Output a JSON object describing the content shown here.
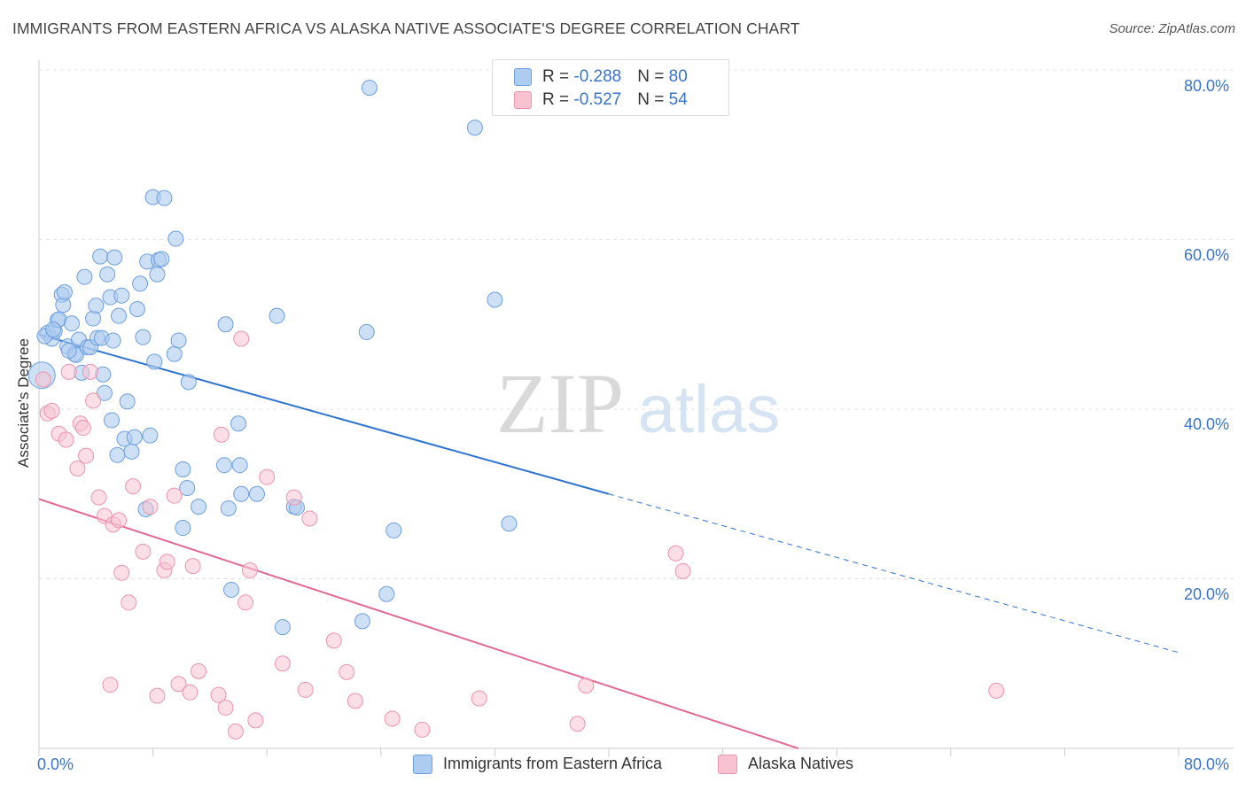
{
  "header": {
    "title": "IMMIGRANTS FROM EASTERN AFRICA VS ALASKA NATIVE ASSOCIATE'S DEGREE CORRELATION CHART",
    "source": "Source: ZipAtlas.com"
  },
  "watermark": {
    "zip": "ZIP",
    "atlas": "atlas"
  },
  "legend": {
    "rows": [
      {
        "r_label": "R = ",
        "r_value": "-0.288",
        "n_label": "N = ",
        "n_value": "80"
      },
      {
        "r_label": "R = ",
        "r_value": "-0.527",
        "n_label": "N = ",
        "n_value": "54"
      }
    ]
  },
  "chart_data": {
    "type": "scatter",
    "ylabel": "Associate's Degree",
    "x_tick_labels": [
      "0.0%",
      "80.0%"
    ],
    "y_tick_labels": [
      "20.0%",
      "40.0%",
      "60.0%",
      "80.0%"
    ],
    "xlim": [
      0,
      80
    ],
    "ylim": [
      0,
      80
    ],
    "grid": true,
    "colors": {
      "blue_fill": "#aecbf0",
      "blue_stroke": "#6d9fde",
      "blue_line": "#2f73d0",
      "pink_fill": "#f8c2d1",
      "pink_stroke": "#ec94b0",
      "pink_line": "#e26a95"
    },
    "series": [
      {
        "name": "Immigrants from Eastern Africa",
        "trend": {
          "x0": 0,
          "y0": 48.8,
          "x1": 40,
          "y1": 30.0,
          "dash_to_x": 80,
          "dash_to_y": 11.3
        },
        "points": [
          [
            0.2,
            44.0
          ],
          [
            0.6,
            49.0
          ],
          [
            0.9,
            48.3
          ],
          [
            1.1,
            49.2
          ],
          [
            1.3,
            50.5
          ],
          [
            1.4,
            50.6
          ],
          [
            1.6,
            53.5
          ],
          [
            1.7,
            52.3
          ],
          [
            1.8,
            53.8
          ],
          [
            2.0,
            47.4
          ],
          [
            2.3,
            50.1
          ],
          [
            2.5,
            46.5
          ],
          [
            2.6,
            46.4
          ],
          [
            2.8,
            48.2
          ],
          [
            3.0,
            44.3
          ],
          [
            3.2,
            55.6
          ],
          [
            3.4,
            47.3
          ],
          [
            3.6,
            47.3
          ],
          [
            3.8,
            50.7
          ],
          [
            4.0,
            52.2
          ],
          [
            4.1,
            48.4
          ],
          [
            4.3,
            58.0
          ],
          [
            4.5,
            44.1
          ],
          [
            4.6,
            41.9
          ],
          [
            4.8,
            55.9
          ],
          [
            5.0,
            53.2
          ],
          [
            5.1,
            38.7
          ],
          [
            5.3,
            57.9
          ],
          [
            5.5,
            34.6
          ],
          [
            5.6,
            51.0
          ],
          [
            5.8,
            53.4
          ],
          [
            6.0,
            36.5
          ],
          [
            6.2,
            40.9
          ],
          [
            6.5,
            35.0
          ],
          [
            6.7,
            36.7
          ],
          [
            6.9,
            51.8
          ],
          [
            7.1,
            54.8
          ],
          [
            7.3,
            48.5
          ],
          [
            7.5,
            28.2
          ],
          [
            7.6,
            57.4
          ],
          [
            7.8,
            36.9
          ],
          [
            8.0,
            65.0
          ],
          [
            8.1,
            45.6
          ],
          [
            8.3,
            55.9
          ],
          [
            8.4,
            57.6
          ],
          [
            8.6,
            57.7
          ],
          [
            8.8,
            64.9
          ],
          [
            9.5,
            46.5
          ],
          [
            9.6,
            60.1
          ],
          [
            9.8,
            48.1
          ],
          [
            10.1,
            26.0
          ],
          [
            10.1,
            32.9
          ],
          [
            10.4,
            30.7
          ],
          [
            10.5,
            43.2
          ],
          [
            11.2,
            28.5
          ],
          [
            13.1,
            50.0
          ],
          [
            13.0,
            33.4
          ],
          [
            13.3,
            28.3
          ],
          [
            13.5,
            18.7
          ],
          [
            14.0,
            38.3
          ],
          [
            14.1,
            33.4
          ],
          [
            14.2,
            30.0
          ],
          [
            15.3,
            30.0
          ],
          [
            16.7,
            51.0
          ],
          [
            17.1,
            14.3
          ],
          [
            17.9,
            28.5
          ],
          [
            18.1,
            28.4
          ],
          [
            23.0,
            49.1
          ],
          [
            23.2,
            77.9
          ],
          [
            24.4,
            18.2
          ],
          [
            24.9,
            25.7
          ],
          [
            22.7,
            15.0
          ],
          [
            30.6,
            73.2
          ],
          [
            32.0,
            52.9
          ],
          [
            33.0,
            26.5
          ],
          [
            0.4,
            48.6
          ],
          [
            1.0,
            49.4
          ],
          [
            2.1,
            46.9
          ],
          [
            4.4,
            48.4
          ],
          [
            5.2,
            48.1
          ]
        ]
      },
      {
        "name": "Alaska Natives",
        "trend": {
          "x0": 0,
          "y0": 29.4,
          "x1": 53.3,
          "y1": 0
        },
        "points": [
          [
            0.6,
            39.5
          ],
          [
            0.9,
            39.8
          ],
          [
            1.4,
            37.1
          ],
          [
            1.9,
            36.4
          ],
          [
            2.1,
            44.4
          ],
          [
            2.7,
            33.0
          ],
          [
            2.9,
            38.3
          ],
          [
            3.1,
            37.8
          ],
          [
            3.3,
            34.5
          ],
          [
            3.6,
            44.4
          ],
          [
            3.8,
            41.0
          ],
          [
            4.2,
            29.6
          ],
          [
            4.6,
            27.4
          ],
          [
            5.0,
            7.5
          ],
          [
            5.2,
            26.4
          ],
          [
            5.6,
            26.9
          ],
          [
            5.8,
            20.7
          ],
          [
            6.3,
            17.2
          ],
          [
            6.6,
            30.9
          ],
          [
            7.3,
            23.2
          ],
          [
            7.8,
            28.5
          ],
          [
            8.3,
            6.2
          ],
          [
            8.8,
            21.0
          ],
          [
            9.0,
            22.0
          ],
          [
            9.5,
            29.8
          ],
          [
            9.8,
            7.6
          ],
          [
            10.6,
            6.6
          ],
          [
            10.8,
            21.5
          ],
          [
            11.2,
            9.1
          ],
          [
            12.6,
            6.3
          ],
          [
            12.8,
            37.0
          ],
          [
            13.1,
            4.8
          ],
          [
            13.8,
            2.0
          ],
          [
            14.2,
            48.3
          ],
          [
            14.5,
            17.2
          ],
          [
            14.8,
            21.0
          ],
          [
            15.2,
            3.3
          ],
          [
            16.0,
            32.0
          ],
          [
            17.1,
            10.0
          ],
          [
            17.9,
            29.6
          ],
          [
            18.7,
            6.9
          ],
          [
            19.0,
            27.1
          ],
          [
            20.7,
            12.7
          ],
          [
            21.6,
            9.0
          ],
          [
            22.2,
            5.6
          ],
          [
            24.8,
            3.5
          ],
          [
            26.9,
            2.2
          ],
          [
            30.9,
            5.9
          ],
          [
            37.8,
            2.9
          ],
          [
            38.4,
            7.4
          ],
          [
            44.7,
            23.0
          ],
          [
            45.2,
            20.9
          ],
          [
            67.2,
            6.8
          ],
          [
            0.3,
            43.5
          ]
        ]
      }
    ]
  }
}
